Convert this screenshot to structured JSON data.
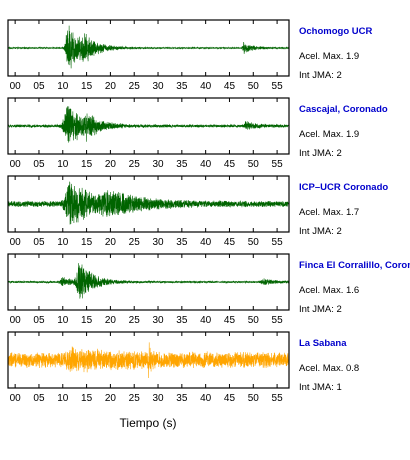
{
  "chart_data": {
    "type": "line",
    "xlabel": "Tiempo (s)",
    "xlim": [
      -1.5,
      57.5
    ],
    "x_ticks": [
      "00",
      "05",
      "10",
      "15",
      "20",
      "25",
      "30",
      "35",
      "40",
      "45",
      "50",
      "55"
    ],
    "station_color": "#0000cc",
    "stations": [
      {
        "name": "Ochomogo UCR",
        "accel_text": "Acel. Max. 1.9",
        "jma_text": "Int JMA: 2",
        "color": "#006400",
        "noise": 0.03,
        "bursts": [
          {
            "t": 11.2,
            "amp": 1.0,
            "rise": 0.6,
            "decay": 3.0
          },
          {
            "t": 14.5,
            "amp": 0.35,
            "rise": 0.5,
            "decay": 2.5
          },
          {
            "t": 48.0,
            "amp": 0.22,
            "rise": 0.3,
            "decay": 2.0
          }
        ]
      },
      {
        "name": "Cascajal, Coronado",
        "accel_text": "Acel. Max. 1.9",
        "jma_text": "Int JMA: 2",
        "color": "#006400",
        "noise": 0.06,
        "bursts": [
          {
            "t": 11.0,
            "amp": 1.0,
            "rise": 0.8,
            "decay": 3.2
          },
          {
            "t": 15.0,
            "amp": 0.3,
            "rise": 0.5,
            "decay": 2.5
          },
          {
            "t": 48.5,
            "amp": 0.18,
            "rise": 0.3,
            "decay": 1.8
          }
        ]
      },
      {
        "name": "ICP–UCR Coronado",
        "accel_text": "Acel. Max. 1.7",
        "jma_text": "Int JMA: 2",
        "color": "#006400",
        "noise": 0.12,
        "bursts": [
          {
            "t": 11.5,
            "amp": 1.0,
            "rise": 1.0,
            "decay": 5.0
          },
          {
            "t": 19.0,
            "amp": 0.35,
            "rise": 1.0,
            "decay": 8.0
          }
        ]
      },
      {
        "name": "Finca El Corralillo, Coronado",
        "accel_text": "Acel. Max. 1.6",
        "jma_text": "Int JMA: 2",
        "color": "#006400",
        "noise": 0.04,
        "bursts": [
          {
            "t": 13.5,
            "amp": 1.0,
            "rise": 0.6,
            "decay": 2.5
          },
          {
            "t": 10.0,
            "amp": 0.2,
            "rise": 0.5,
            "decay": 2.0
          },
          {
            "t": 52.0,
            "amp": 0.12,
            "rise": 0.5,
            "decay": 2.5
          }
        ]
      },
      {
        "name": "La Sabana",
        "accel_text": "Acel. Max. 0.8",
        "jma_text": "Int JMA: 1",
        "color": "#ffa500",
        "noise": 0.32,
        "bursts": [
          {
            "t": 12.0,
            "amp": 0.25,
            "rise": 1.0,
            "decay": 10.0
          },
          {
            "t": 28.0,
            "amp": 1.0,
            "rise": 0.05,
            "decay": 0.25
          }
        ]
      }
    ]
  }
}
